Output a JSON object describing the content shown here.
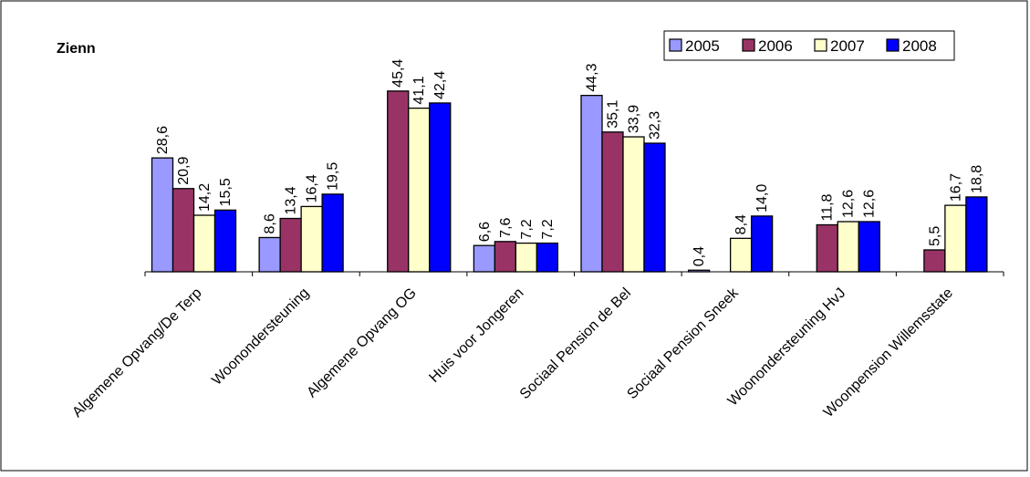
{
  "chart_data": {
    "type": "bar",
    "title": "Zienn",
    "xlabel": "",
    "ylabel": "",
    "ylim": [
      0,
      50
    ],
    "grid": false,
    "legend_position": "top-right",
    "categories": [
      "Algemene Opvang/De Terp",
      "Woonondersteuning",
      "Algemene Opvang OG",
      "Huis voor Jongeren",
      "Sociaal Pension de Bel",
      "Sociaal Pension Sneek",
      "Woonondersteuning HvJ",
      "Woonpension Willemsstate"
    ],
    "series": [
      {
        "name": "2005",
        "color": "#9999ff",
        "values": [
          28.6,
          8.6,
          null,
          6.6,
          44.3,
          0.4,
          null,
          null
        ],
        "labels": [
          "28,6",
          "8,6",
          "",
          "6,6",
          "44,3",
          "0,4",
          "",
          ""
        ]
      },
      {
        "name": "2006",
        "color": "#993366",
        "values": [
          20.9,
          13.4,
          45.4,
          7.6,
          35.1,
          null,
          11.8,
          5.5
        ],
        "labels": [
          "20,9",
          "13,4",
          "45,4",
          "7,6",
          "35,1",
          "",
          "11,8",
          "5,5"
        ]
      },
      {
        "name": "2007",
        "color": "#ffffcc",
        "values": [
          14.2,
          16.4,
          41.1,
          7.2,
          33.9,
          8.4,
          12.6,
          16.7
        ],
        "labels": [
          "14,2",
          "16,4",
          "41,1",
          "7,2",
          "33,9",
          "8,4",
          "12,6",
          "16,7"
        ]
      },
      {
        "name": "2008",
        "color": "#0000ff",
        "values": [
          15.5,
          19.5,
          42.4,
          7.2,
          32.3,
          14.0,
          12.6,
          18.8
        ],
        "labels": [
          "15,5",
          "19,5",
          "42,4",
          "7,2",
          "32,3",
          "14,0",
          "12,6",
          "18,8"
        ]
      }
    ]
  }
}
